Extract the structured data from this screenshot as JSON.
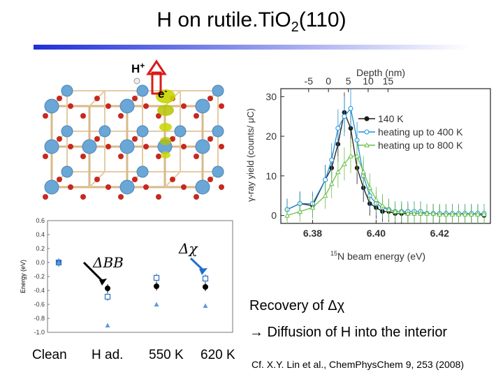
{
  "title": {
    "main": "H on rutile.TiO",
    "sub": "2",
    "tail": "(110)"
  },
  "colors": {
    "title_bar_left": "#1f2fd8",
    "title_bar_right": "#ffffff",
    "arrow": "#d81b1b",
    "orbital": "#c8d400",
    "ti_atom": "#6aa6d6",
    "o_atom": "#c8281e",
    "series_140": "#1a1a1a",
    "series_400": "#1e8fd6",
    "series_800": "#6cc04a"
  },
  "crystal": {
    "h_label": "H",
    "h_sup": "+",
    "e_label": "e",
    "e_sup": "-"
  },
  "energy_panel": {
    "ylabel": "Energy (eV)",
    "yticks": [
      "0.6",
      "0.4",
      "0.2",
      "0.0",
      "-0.2",
      "-0.4",
      "-0.6",
      "-0.8",
      "-1.0"
    ],
    "bb_label": "ΔBB",
    "chi_label": "Δχ",
    "stages": [
      "Clean",
      "H ad.",
      "550 K",
      "620 K"
    ]
  },
  "yield_panel": {
    "top_axis_label": "Depth (nm)",
    "top_ticks": [
      "-5",
      "0",
      "5",
      "10",
      "15"
    ],
    "ylabel": "γ-ray yield (counts/ μC)",
    "yticks": [
      "30",
      "20",
      "10",
      "0"
    ],
    "xticks": [
      "6.38",
      "6.40",
      "6.42"
    ],
    "xlabel_sup": "15",
    "xlabel": "N beam energy (eV)",
    "legend": [
      "140 K",
      "heating up to 400 K",
      "heating up to 800 K"
    ]
  },
  "chart_data": [
    {
      "type": "scatter",
      "title": "",
      "xlabel": "",
      "ylabel": "Energy (eV)",
      "categories": [
        "Clean",
        "H ad.",
        "550 K",
        "620 K"
      ],
      "ylim": [
        -1.0,
        0.6
      ],
      "series": [
        {
          "marker": "filled-circle",
          "values": [
            null,
            -0.37,
            -0.34,
            -0.35
          ]
        },
        {
          "marker": "open-square",
          "values": [
            0.0,
            -0.49,
            -0.22,
            -0.23
          ]
        },
        {
          "marker": "triangle",
          "values": [
            0.0,
            -0.9,
            -0.6,
            -0.62
          ]
        }
      ],
      "annotations": [
        "ΔBB",
        "Δχ"
      ]
    },
    {
      "type": "line",
      "title": "",
      "xlabel": "15N beam energy (eV)",
      "ylabel": "γ-ray yield (counts/ μC)",
      "top_axis": "Depth (nm)",
      "xlim": [
        6.37,
        6.436
      ],
      "ylim": [
        -2,
        32
      ],
      "legend_position": "top-right",
      "x": [
        6.372,
        6.376,
        6.38,
        6.384,
        6.386,
        6.388,
        6.39,
        6.392,
        6.394,
        6.396,
        6.398,
        6.4,
        6.402,
        6.404,
        6.406,
        6.408,
        6.41,
        6.412,
        6.414,
        6.416,
        6.418,
        6.42,
        6.422,
        6.424,
        6.426,
        6.428,
        6.43,
        6.432,
        6.434
      ],
      "series": [
        {
          "name": "140 K",
          "values": [
            1.5,
            3,
            2.5,
            9,
            12,
            18,
            26,
            22,
            12,
            7,
            3,
            2,
            1,
            1,
            0.5,
            0.5,
            0.5,
            0.5,
            0.5,
            0.5,
            0.5,
            0.3,
            0.3,
            0.3,
            0.3,
            0.3,
            0.3,
            0.3,
            0
          ]
        },
        {
          "name": "heating up to 400 K",
          "values": [
            1.5,
            3,
            3,
            9,
            14,
            22,
            25,
            27,
            19,
            10,
            5,
            3,
            2,
            1.5,
            1,
            1,
            1,
            1,
            1,
            0.5,
            0.5,
            0.5,
            0.5,
            0.5,
            0.5,
            0.5,
            0.5,
            0.5,
            0.5
          ]
        },
        {
          "name": "heating up to 800 K",
          "values": [
            0,
            1,
            2,
            5,
            8,
            11,
            13,
            15,
            15,
            11,
            7,
            4,
            2.5,
            1.5,
            1,
            1,
            0.5,
            0.5,
            0.5,
            0.5,
            0.5,
            0.3,
            0.3,
            0.3,
            0.3,
            0.3,
            0.3,
            0.3,
            0.3
          ]
        }
      ]
    }
  ],
  "conclusion": {
    "recovery_prefix": "Recovery of ",
    "recovery_symbol": "Δχ",
    "diffusion": "→ Diffusion of H into the interior"
  },
  "citation": "Cf. X.Y. Lin et al., ChemPhysChem 9, 253 (2008)"
}
